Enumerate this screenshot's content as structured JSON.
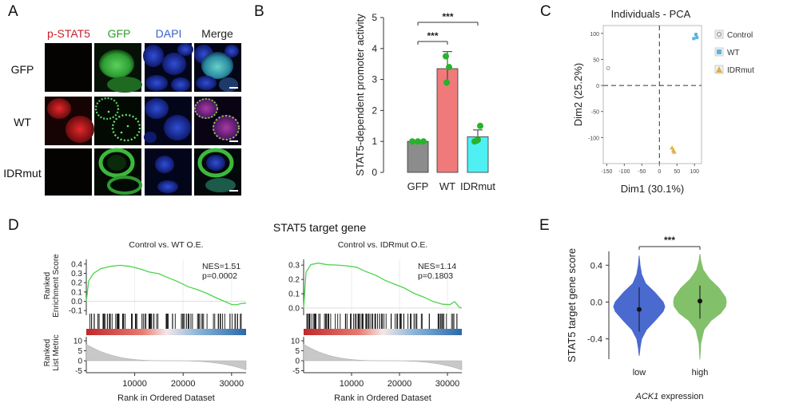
{
  "panel_labels": {
    "a": "A",
    "b": "B",
    "c": "C",
    "d": "D",
    "e": "E"
  },
  "microscopy": {
    "columns": [
      "p-STAT5",
      "GFP",
      "DAPI",
      "Merge"
    ],
    "column_colors": [
      "#c8202a",
      "#2a9a2a",
      "#3a5fc8",
      "#222222"
    ],
    "rows": [
      "GFP",
      "WT",
      "IDRmut"
    ]
  },
  "gsea": {
    "title": "STAT5 target gene",
    "ylabel_top": [
      "Ranked",
      "Enrichment Score"
    ],
    "ylabel_bottom": [
      "Ranked",
      "List Metric"
    ],
    "xlabel": "Rank in Ordered Dataset"
  },
  "chart_data": [
    {
      "id": "B",
      "type": "bar",
      "categories": [
        "GFP",
        "WT",
        "IDRmut"
      ],
      "values": [
        1.0,
        3.35,
        1.15
      ],
      "errors": [
        0.02,
        0.55,
        0.22
      ],
      "points": [
        [
          1.0,
          1.0,
          1.0
        ],
        [
          3.75,
          3.4,
          2.9
        ],
        [
          1.0,
          1.5,
          1.05
        ]
      ],
      "colors": [
        "#8c8c8c",
        "#f07a7a",
        "#4ef0f4"
      ],
      "point_color": "#27b32a",
      "ylabel": "STAT5-dependent promoter activity",
      "ylim": [
        0,
        5
      ],
      "yticks": [
        "0",
        "1",
        "2",
        "3",
        "4",
        "5"
      ],
      "significance": [
        {
          "from": "GFP",
          "to": "WT",
          "label": "***"
        },
        {
          "from": "GFP",
          "to": "IDRmut",
          "label": "***"
        }
      ]
    },
    {
      "id": "C",
      "type": "scatter",
      "title": "Individuals - PCA",
      "xlabel": "Dim1 (30.1%)",
      "ylabel": "Dim2 (25.2%)",
      "xlim": [
        -160,
        120
      ],
      "ylim": [
        -150,
        115
      ],
      "xticks": [
        -150,
        -100,
        -50,
        0,
        50,
        100
      ],
      "xtick_labels": [
        "-150",
        "-100",
        "-50",
        "0",
        "50",
        "100"
      ],
      "yticks": [
        100,
        50,
        0,
        -50,
        -100
      ],
      "ytick_labels": [
        "100",
        "50",
        "0",
        "-50",
        "-100"
      ],
      "series": [
        {
          "name": "Control",
          "color": "#999999",
          "marker": "circle",
          "points": [
            [
              -146,
              33
            ]
          ]
        },
        {
          "name": "WT",
          "color": "#5ab4e0",
          "marker": "square",
          "points": [
            [
              104,
              98
            ],
            [
              98,
              90
            ],
            [
              107,
              92
            ]
          ]
        },
        {
          "name": "IDRmut",
          "color": "#e0b040",
          "marker": "triangle",
          "points": [
            [
              36,
              -120
            ],
            [
              40,
              -125
            ],
            [
              42,
              -128
            ]
          ]
        }
      ]
    },
    {
      "id": "D1",
      "type": "line",
      "title": "Control vs. WT O.E.",
      "nes_label": "NES=1.51",
      "p_label": "p=0.0002",
      "xlim": [
        0,
        33000
      ],
      "xticks": [
        10000,
        20000,
        30000
      ],
      "xtick_labels": [
        "10000",
        "20000",
        "30000"
      ],
      "es_ylim": [
        -0.15,
        0.45
      ],
      "es_yticks": [
        0.4,
        0.3,
        0.2,
        0.1,
        0.0,
        -0.1
      ],
      "es_ytick_labels": [
        "0.4",
        "0.3",
        "0.2",
        "0.1",
        "0.0",
        "-0.1"
      ],
      "curve_x": [
        0,
        500,
        1500,
        3000,
        5000,
        7000,
        9000,
        11000,
        13000,
        15000,
        17000,
        19000,
        21000,
        23000,
        25000,
        27000,
        28500,
        30000,
        31000,
        32000,
        33000
      ],
      "curve_y": [
        0.0,
        0.22,
        0.3,
        0.35,
        0.38,
        0.39,
        0.375,
        0.35,
        0.32,
        0.29,
        0.25,
        0.21,
        0.16,
        0.12,
        0.08,
        0.04,
        0.0,
        -0.03,
        -0.04,
        -0.02,
        -0.02
      ],
      "metric_ylim": [
        -6,
        12
      ],
      "metric_yticks": [
        10,
        5,
        0,
        -5
      ],
      "metric_ytick_labels": [
        "10",
        "5",
        "0",
        "-5"
      ]
    },
    {
      "id": "D2",
      "type": "line",
      "title": "Control vs. IDRmut O.E.",
      "nes_label": "NES=1.14",
      "p_label": "p=0.1803",
      "xlim": [
        0,
        33000
      ],
      "xticks": [
        10000,
        20000,
        30000
      ],
      "xtick_labels": [
        "10000",
        "20000",
        "30000"
      ],
      "es_ylim": [
        -0.05,
        0.34
      ],
      "es_yticks": [
        0.3,
        0.2,
        0.1,
        0.0
      ],
      "es_ytick_labels": [
        "0.3",
        "0.2",
        "0.1",
        "0.0"
      ],
      "curve_x": [
        0,
        500,
        1500,
        3000,
        5000,
        7000,
        9000,
        11000,
        13000,
        15000,
        17000,
        19000,
        21000,
        23000,
        25000,
        27000,
        29000,
        30500,
        31500,
        32500,
        33000
      ],
      "curve_y": [
        0.0,
        0.25,
        0.31,
        0.32,
        0.31,
        0.3,
        0.29,
        0.28,
        0.26,
        0.23,
        0.2,
        0.17,
        0.14,
        0.11,
        0.08,
        0.05,
        0.03,
        0.02,
        0.05,
        0.01,
        0.0
      ],
      "metric_ylim": [
        -6,
        12
      ],
      "metric_yticks": [
        10,
        5,
        0,
        -5
      ],
      "metric_ytick_labels": [
        "10",
        "5",
        "0",
        "-5"
      ]
    },
    {
      "id": "E",
      "type": "violin",
      "categories": [
        "low",
        "high"
      ],
      "colors": [
        "#4a6ad0",
        "#82c06a"
      ],
      "medians": [
        -0.08,
        0.01
      ],
      "ranges": [
        [
          -0.32,
          0.16
        ],
        [
          -0.18,
          0.18
        ]
      ],
      "ylim": [
        -0.62,
        0.55
      ],
      "yticks": [
        0.4,
        0.0,
        -0.4
      ],
      "ytick_labels": [
        "0.4",
        "0.0",
        "-0.4"
      ],
      "ylabel": "STAT5 target gene score",
      "xlabel_gene": "ACK1",
      "xlabel_rest": " expression",
      "significance": "***"
    }
  ]
}
